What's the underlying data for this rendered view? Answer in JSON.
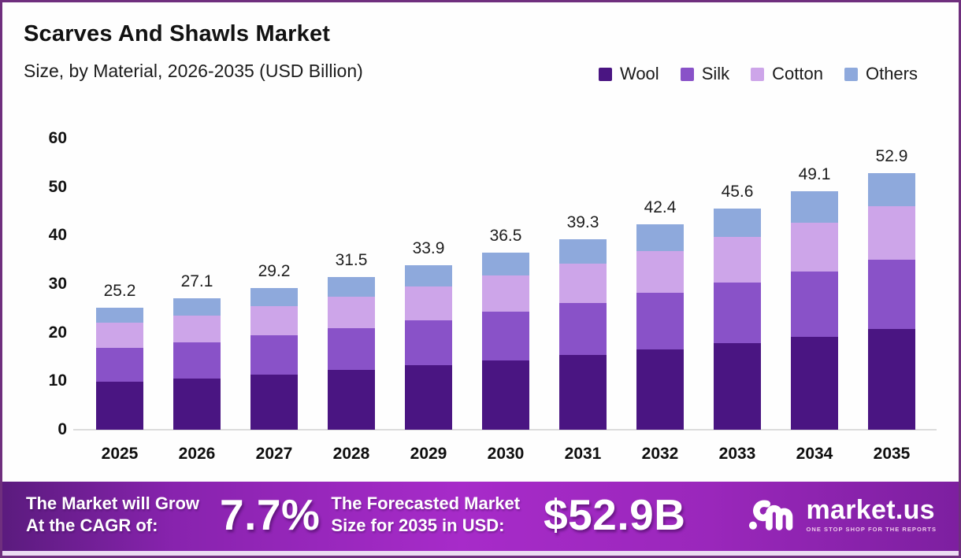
{
  "header": {
    "title": "Scarves And Shawls Market",
    "subtitle": "Size, by Material, 2026-2035 (USD Billion)"
  },
  "legend": {
    "items": [
      {
        "label": "Wool",
        "color": "#4a1582"
      },
      {
        "label": "Silk",
        "color": "#8952c8"
      },
      {
        "label": "Cotton",
        "color": "#cda5e9"
      },
      {
        "label": "Others",
        "color": "#8ea9dc"
      }
    ]
  },
  "chart_data": {
    "type": "bar",
    "stacked": true,
    "title": "Scarves And Shawls Market",
    "subtitle": "Size, by Material, 2026-2035 (USD Billion)",
    "unit": "USD Billion",
    "categories": [
      "2025",
      "2026",
      "2027",
      "2028",
      "2029",
      "2030",
      "2031",
      "2032",
      "2033",
      "2034",
      "2035"
    ],
    "series": [
      {
        "name": "Wool",
        "color": "#4a1582",
        "values": [
          9.9,
          10.6,
          11.4,
          12.3,
          13.3,
          14.3,
          15.4,
          16.6,
          17.9,
          19.2,
          20.7
        ]
      },
      {
        "name": "Silk",
        "color": "#8952c8",
        "values": [
          6.9,
          7.4,
          8.0,
          8.6,
          9.3,
          10.0,
          10.7,
          11.6,
          12.5,
          13.4,
          14.4
        ]
      },
      {
        "name": "Cotton",
        "color": "#cda5e9",
        "values": [
          5.2,
          5.6,
          6.0,
          6.5,
          6.9,
          7.5,
          8.1,
          8.7,
          9.3,
          10.1,
          10.9
        ]
      },
      {
        "name": "Others",
        "color": "#8ea9dc",
        "values": [
          3.2,
          3.5,
          3.8,
          4.1,
          4.4,
          4.7,
          5.1,
          5.5,
          5.9,
          6.4,
          6.9
        ]
      }
    ],
    "totals": [
      "25.2",
      "27.1",
      "29.2",
      "31.5",
      "33.9",
      "36.5",
      "39.3",
      "42.4",
      "45.6",
      "49.1",
      "52.9"
    ],
    "ylim": [
      0,
      60
    ],
    "yticks": [
      0,
      10,
      20,
      30,
      40,
      50,
      60
    ],
    "grid": false,
    "legend_position": "top-right"
  },
  "banner": {
    "cagr_label_line1": "The Market will Grow",
    "cagr_label_line2": "At the CAGR of:",
    "cagr_value": "7.7%",
    "forecast_label_line1": "The Forecasted Market",
    "forecast_label_line2": "Size for 2035 in USD:",
    "forecast_value": "$52.9B",
    "brand": {
      "name": "market.us",
      "tagline": "ONE STOP SHOP FOR THE REPORTS"
    }
  },
  "colors": {
    "page_border": "#6f2f7e",
    "baseline": "#dcdcdc",
    "banner_gradient_start": "#5b1b7e",
    "banner_gradient_mid": "#a72bc9",
    "banner_gradient_end": "#7d1fa0"
  }
}
